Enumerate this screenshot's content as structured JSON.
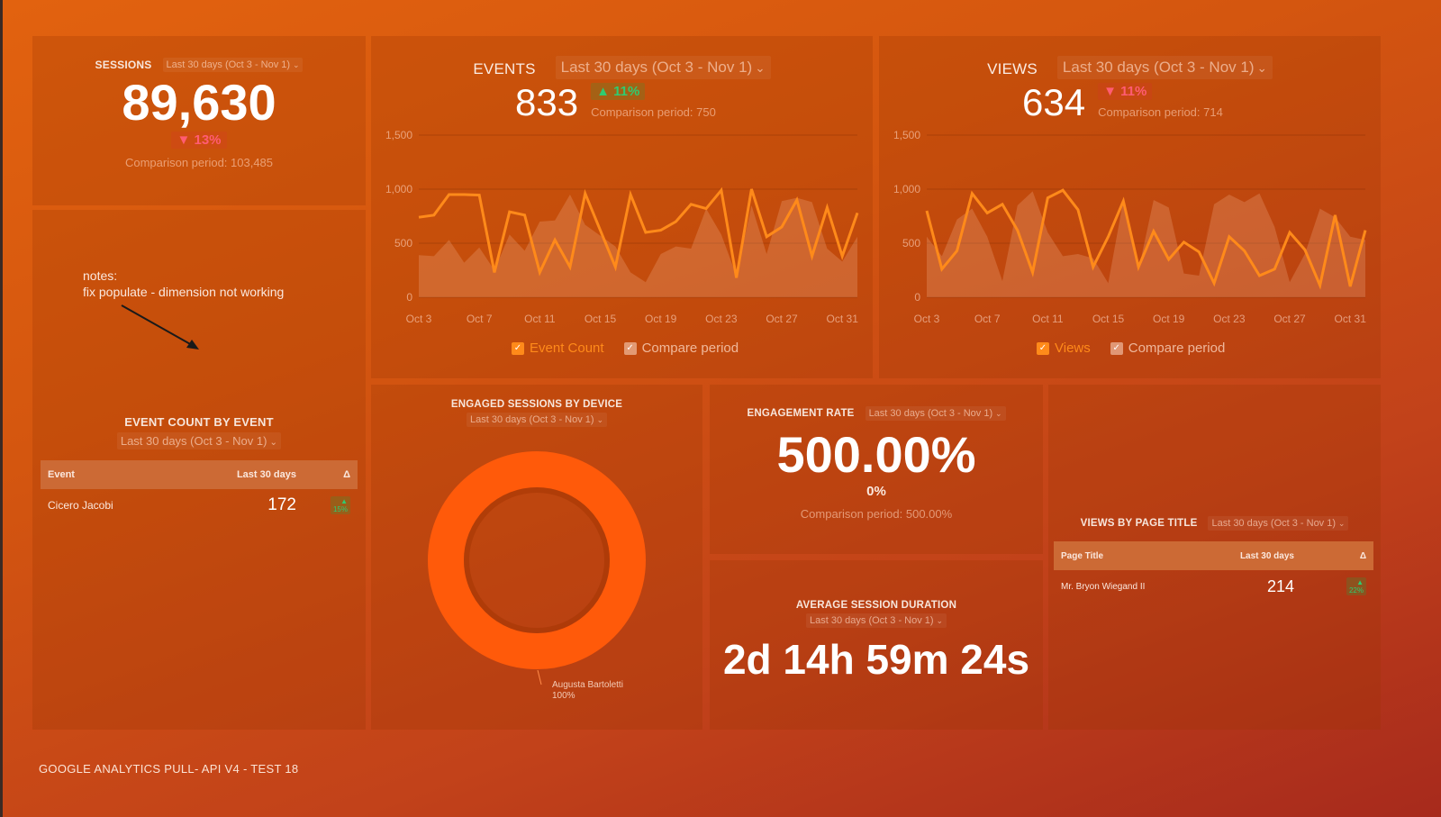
{
  "footer": {
    "title": "GOOGLE ANALYTICS PULL- API V4 - TEST 18"
  },
  "date_range": "Last 30 days (Oct 3 - Nov 1)",
  "chevron": "⌄",
  "sessions": {
    "title": "SESSIONS",
    "value": "89,630",
    "change": "▼ 13%",
    "compare": "Comparison period: 103,485"
  },
  "notes": {
    "line1": "notes:",
    "line2": "fix populate - dimension not working"
  },
  "events": {
    "title": "EVENTS",
    "value": "833",
    "change": "▲ 11%",
    "compare": "Comparison period: 750",
    "legend": {
      "primary": "Event Count",
      "secondary": "Compare period"
    }
  },
  "views": {
    "title": "VIEWS",
    "value": "634",
    "change": "▼ 11%",
    "compare": "Comparison period: 714",
    "legend": {
      "primary": "Views",
      "secondary": "Compare period"
    }
  },
  "event_count_by_event": {
    "title": "EVENT COUNT BY EVENT",
    "columns": [
      "Event",
      "Last 30 days",
      "Δ"
    ],
    "rows": [
      {
        "name": "Cicero Jacobi",
        "value": "172",
        "delta": "▲ 15%"
      }
    ]
  },
  "engaged_sessions_by_device": {
    "title": "ENGAGED SESSIONS BY DEVICE",
    "slice_label": "Augusta Bartoletti",
    "slice_pct": "100%",
    "color": "#ff5a0a"
  },
  "engagement_rate": {
    "title": "ENGAGEMENT RATE",
    "value": "500.00%",
    "change": "0%",
    "compare": "Comparison period: 500.00%"
  },
  "avg_session_duration": {
    "title": "AVERAGE SESSION DURATION",
    "value": "2d 14h 59m 24s"
  },
  "views_by_page_title": {
    "title": "VIEWS BY PAGE TITLE",
    "columns": [
      "Page Title",
      "Last 30 days",
      "Δ"
    ],
    "rows": [
      {
        "name": "Mr. Bryon Wiegand II",
        "value": "214",
        "delta": "▲ 22%"
      }
    ]
  },
  "colors": {
    "line": "#ff8a1a",
    "compare_area": "rgba(255,200,170,0.22)",
    "grid": "rgba(120,40,0,0.35)",
    "down": "#ff5c73",
    "up": "#2ecc71"
  },
  "chart_data": [
    {
      "type": "line",
      "title": "EVENTS",
      "xlabel": "",
      "ylabel": "",
      "ylim": [
        0,
        1500
      ],
      "yticks": [
        "0",
        "500",
        "1,000",
        "1,500"
      ],
      "xticks": [
        "Oct 3",
        "Oct 7",
        "Oct 11",
        "Oct 15",
        "Oct 19",
        "Oct 23",
        "Oct 27",
        "Oct 31"
      ],
      "grid": true,
      "legend_position": "bottom",
      "x": [
        "Oct 3",
        "Oct 4",
        "Oct 5",
        "Oct 6",
        "Oct 7",
        "Oct 8",
        "Oct 9",
        "Oct 10",
        "Oct 11",
        "Oct 12",
        "Oct 13",
        "Oct 14",
        "Oct 15",
        "Oct 16",
        "Oct 17",
        "Oct 18",
        "Oct 19",
        "Oct 20",
        "Oct 21",
        "Oct 22",
        "Oct 23",
        "Oct 24",
        "Oct 25",
        "Oct 26",
        "Oct 27",
        "Oct 28",
        "Oct 29",
        "Oct 30",
        "Oct 31",
        "Nov 1"
      ],
      "series": [
        {
          "name": "Event Count",
          "values": [
            740,
            760,
            950,
            950,
            945,
            230,
            790,
            760,
            230,
            530,
            280,
            960,
            620,
            280,
            950,
            600,
            620,
            700,
            860,
            820,
            990,
            180,
            1000,
            560,
            650,
            900,
            380,
            830,
            380,
            780
          ]
        },
        {
          "name": "Compare period",
          "type": "area",
          "values": [
            390,
            380,
            530,
            320,
            460,
            250,
            580,
            430,
            700,
            710,
            950,
            670,
            570,
            470,
            230,
            140,
            400,
            470,
            450,
            820,
            580,
            200,
            850,
            400,
            890,
            920,
            880,
            450,
            330,
            560
          ]
        }
      ]
    },
    {
      "type": "line",
      "title": "VIEWS",
      "xlabel": "",
      "ylabel": "",
      "ylim": [
        0,
        1500
      ],
      "yticks": [
        "0",
        "500",
        "1,000",
        "1,500"
      ],
      "xticks": [
        "Oct 3",
        "Oct 7",
        "Oct 11",
        "Oct 15",
        "Oct 19",
        "Oct 23",
        "Oct 27",
        "Oct 31"
      ],
      "grid": true,
      "legend_position": "bottom",
      "x": [
        "Oct 3",
        "Oct 4",
        "Oct 5",
        "Oct 6",
        "Oct 7",
        "Oct 8",
        "Oct 9",
        "Oct 10",
        "Oct 11",
        "Oct 12",
        "Oct 13",
        "Oct 14",
        "Oct 15",
        "Oct 16",
        "Oct 17",
        "Oct 18",
        "Oct 19",
        "Oct 20",
        "Oct 21",
        "Oct 22",
        "Oct 23",
        "Oct 24",
        "Oct 25",
        "Oct 26",
        "Oct 27",
        "Oct 28",
        "Oct 29",
        "Oct 30",
        "Oct 31",
        "Nov 1"
      ],
      "series": [
        {
          "name": "Views",
          "values": [
            800,
            260,
            430,
            960,
            780,
            860,
            620,
            230,
            920,
            990,
            810,
            280,
            560,
            890,
            280,
            610,
            350,
            510,
            420,
            130,
            560,
            430,
            200,
            260,
            600,
            440,
            110,
            760,
            100,
            620
          ]
        },
        {
          "name": "Compare period",
          "type": "area",
          "values": [
            560,
            380,
            720,
            820,
            560,
            150,
            850,
            980,
            600,
            380,
            400,
            360,
            130,
            900,
            250,
            900,
            830,
            220,
            200,
            860,
            950,
            880,
            960,
            650,
            140,
            400,
            820,
            740,
            560,
            530
          ]
        }
      ]
    },
    {
      "type": "pie",
      "title": "ENGAGED SESSIONS BY DEVICE",
      "categories": [
        "Augusta Bartoletti"
      ],
      "values": [
        100
      ]
    }
  ]
}
